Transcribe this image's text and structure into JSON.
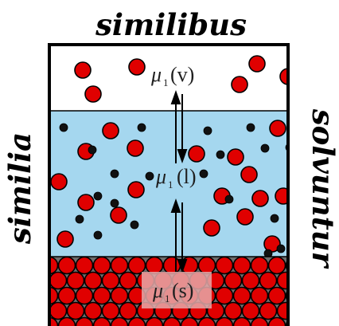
{
  "captions": {
    "top": "similibus",
    "left": "similia",
    "right": "solvuntur"
  },
  "phases": {
    "vapor": {
      "symbol": "μ",
      "subscript": "1",
      "state": "(v)"
    },
    "liquid": {
      "symbol": "μ",
      "subscript": "1",
      "state": "(l)"
    },
    "solid": {
      "symbol": "μ",
      "subscript": "1",
      "state": "(s)"
    }
  },
  "colors": {
    "vapor_fill": "#ffffff",
    "liquid_fill": "#a5d7ef",
    "solid_fill": "#6e6e6e",
    "solute_particle": "#e00000",
    "solvent_particle": "#111111",
    "outline": "#000000",
    "label_box": "#e6a9a9"
  },
  "icons": [
    "equilibrium-arrows-icon"
  ]
}
